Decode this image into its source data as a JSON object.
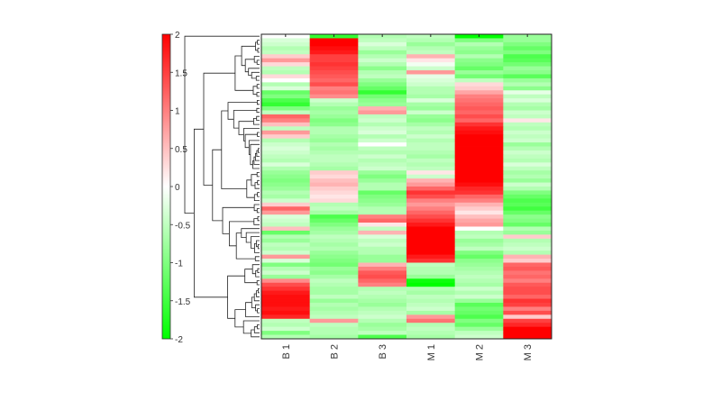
{
  "chart_data": {
    "type": "heatmap",
    "title": "",
    "columns": [
      "B 1",
      "B 2",
      "B 3",
      "M 1",
      "M 2",
      "M 3"
    ],
    "color_scale": {
      "min": -2,
      "max": 2,
      "ticks": [
        "2",
        "1.5",
        "1",
        "0.5",
        "0",
        "-0.5",
        "-1",
        "-1.5",
        "-2"
      ],
      "tick_values": [
        2,
        1.5,
        1,
        0.5,
        0,
        -0.5,
        -1,
        -1.5,
        -2
      ],
      "low_color": "#00ff00",
      "mid_color": "#ffffff",
      "high_color": "#ff0000"
    },
    "dendrogram": "rows",
    "legend_placement": "left",
    "rows": [
      [
        0.0,
        -1.6,
        -0.6,
        -0.5,
        -2.0,
        -0.8
      ],
      [
        -0.3,
        2.0,
        -0.5,
        -0.6,
        -1.0,
        -0.8
      ],
      [
        -0.4,
        2.0,
        -0.3,
        -0.8,
        -0.6,
        -1.0
      ],
      [
        -0.6,
        1.9,
        -0.5,
        -0.6,
        -0.8,
        -1.2
      ],
      [
        -0.5,
        1.8,
        -0.8,
        -0.5,
        -0.9,
        -1.0
      ],
      [
        0.4,
        1.5,
        -0.6,
        0.6,
        -0.6,
        -1.4
      ],
      [
        0.8,
        1.5,
        -0.4,
        0.2,
        -0.9,
        -1.3
      ],
      [
        0.3,
        1.6,
        -0.6,
        -0.1,
        -1.0,
        -1.1
      ],
      [
        -0.5,
        1.5,
        -0.9,
        -0.4,
        -1.2,
        -0.8
      ],
      [
        -0.6,
        1.4,
        -0.6,
        0.8,
        -0.8,
        -0.9
      ],
      [
        0.3,
        1.3,
        -0.5,
        -0.2,
        -1.1,
        -1.3
      ],
      [
        0.0,
        1.2,
        -0.8,
        -0.3,
        -0.5,
        -0.8
      ],
      [
        -0.6,
        1.4,
        -1.0,
        -0.4,
        0.3,
        -0.6
      ],
      [
        -0.3,
        1.0,
        -1.2,
        -0.6,
        0.4,
        -0.9
      ],
      [
        -1.2,
        1.1,
        -1.6,
        -0.6,
        0.7,
        -0.2
      ],
      [
        -1.0,
        0.9,
        -1.1,
        -0.7,
        1.0,
        -0.5
      ],
      [
        -1.4,
        -0.4,
        -0.9,
        -0.3,
        1.1,
        -0.3
      ],
      [
        -1.6,
        -0.6,
        -0.8,
        -0.7,
        1.2,
        -0.6
      ],
      [
        -1.0,
        -0.8,
        0.6,
        -0.8,
        1.3,
        -0.7
      ],
      [
        -0.5,
        -0.7,
        0.8,
        -0.4,
        1.2,
        -0.4
      ],
      [
        1.2,
        -0.8,
        -0.5,
        -0.8,
        1.4,
        -0.5
      ],
      [
        1.0,
        -1.0,
        -0.4,
        -0.9,
        1.2,
        0.2
      ],
      [
        0.5,
        -0.9,
        -0.6,
        -0.7,
        1.6,
        -0.5
      ],
      [
        -0.5,
        -0.6,
        -0.4,
        -0.5,
        1.8,
        -0.6
      ],
      [
        0.8,
        -0.6,
        -0.3,
        -0.6,
        1.9,
        -0.4
      ],
      [
        0.4,
        -0.7,
        -0.6,
        -0.4,
        2.0,
        -0.5
      ],
      [
        -0.6,
        -0.8,
        -0.4,
        -0.6,
        2.0,
        -0.4
      ],
      [
        -0.4,
        -0.6,
        0.0,
        -0.5,
        2.0,
        -0.8
      ],
      [
        -0.3,
        -0.7,
        -0.5,
        -0.5,
        2.0,
        -0.6
      ],
      [
        -0.4,
        -0.6,
        -0.6,
        -0.6,
        2.0,
        -0.4
      ],
      [
        -0.5,
        -0.5,
        -0.4,
        -0.7,
        2.0,
        -0.5
      ],
      [
        -0.6,
        -0.5,
        -0.6,
        -0.5,
        2.0,
        -0.6
      ],
      [
        -0.3,
        -0.6,
        -0.5,
        -0.6,
        2.0,
        -0.3
      ],
      [
        -0.6,
        -0.7,
        -0.4,
        -0.5,
        2.0,
        -0.5
      ],
      [
        -0.8,
        0.4,
        -0.8,
        0.2,
        2.0,
        -0.7
      ],
      [
        -0.9,
        0.3,
        -1.0,
        -0.4,
        2.0,
        -0.6
      ],
      [
        -1.0,
        0.5,
        -0.8,
        0.6,
        2.0,
        -0.8
      ],
      [
        -0.9,
        0.6,
        -0.6,
        0.8,
        1.9,
        -0.4
      ],
      [
        -0.8,
        0.4,
        -0.6,
        1.2,
        1.7,
        -0.6
      ],
      [
        -0.6,
        0.3,
        -1.2,
        1.6,
        1.6,
        -1.0
      ],
      [
        -0.7,
        0.2,
        -1.0,
        1.4,
        1.2,
        -1.2
      ],
      [
        -0.4,
        0.3,
        -0.9,
        1.0,
        1.0,
        -1.4
      ],
      [
        0.4,
        -0.6,
        -0.8,
        0.8,
        0.6,
        -1.3
      ],
      [
        1.2,
        -0.5,
        -0.6,
        1.0,
        0.4,
        -1.5
      ],
      [
        0.8,
        -0.7,
        -0.6,
        1.2,
        0.2,
        -1.2
      ],
      [
        -0.3,
        -1.4,
        1.0,
        1.4,
        0.5,
        -0.9
      ],
      [
        -0.4,
        -1.2,
        1.2,
        1.6,
        0.7,
        -1.0
      ],
      [
        -0.5,
        -1.0,
        0.2,
        1.8,
        0.8,
        -1.2
      ],
      [
        0.5,
        -0.8,
        -0.5,
        2.0,
        0.0,
        -0.6
      ],
      [
        -1.2,
        -0.7,
        0.6,
        2.0,
        -0.6,
        -0.8
      ],
      [
        -0.6,
        -0.5,
        -0.3,
        2.0,
        -0.5,
        0.4
      ],
      [
        -0.8,
        -0.6,
        -0.5,
        2.0,
        -0.8,
        -0.6
      ],
      [
        -0.5,
        -0.7,
        -0.4,
        2.0,
        -0.7,
        -0.5
      ],
      [
        -0.6,
        -0.6,
        -0.6,
        2.0,
        -0.5,
        -0.4
      ],
      [
        -0.4,
        -0.8,
        -0.6,
        2.0,
        -1.0,
        -0.6
      ],
      [
        0.8,
        -0.9,
        -0.8,
        1.8,
        -1.2,
        0.6
      ],
      [
        -0.3,
        -1.0,
        -0.8,
        1.6,
        -0.9,
        0.4
      ],
      [
        -1.0,
        -1.1,
        0.6,
        -0.5,
        -0.8,
        1.2
      ],
      [
        -0.6,
        -0.8,
        1.0,
        -0.6,
        -0.7,
        1.3
      ],
      [
        -0.4,
        -0.9,
        1.3,
        -0.6,
        -0.6,
        1.1
      ],
      [
        -0.8,
        -0.7,
        1.4,
        -0.8,
        -0.5,
        1.2
      ],
      [
        0.9,
        -0.5,
        1.2,
        -1.9,
        -0.6,
        1.0
      ],
      [
        1.4,
        -0.6,
        1.0,
        -2.0,
        -0.7,
        1.3
      ],
      [
        1.6,
        -0.7,
        -0.6,
        -0.6,
        -0.4,
        1.4
      ],
      [
        1.8,
        -0.7,
        -0.5,
        -0.7,
        -0.6,
        1.4
      ],
      [
        1.9,
        -0.5,
        -0.6,
        -0.5,
        -0.4,
        1.2
      ],
      [
        1.9,
        -0.8,
        -0.7,
        -0.6,
        -0.8,
        1.6
      ],
      [
        1.9,
        -0.6,
        -0.8,
        -0.5,
        -1.3,
        1.5
      ],
      [
        1.8,
        -0.7,
        -0.6,
        -0.4,
        -1.1,
        1.0
      ],
      [
        1.9,
        -0.6,
        -0.5,
        -0.7,
        -1.2,
        1.4
      ],
      [
        1.7,
        -0.5,
        -0.4,
        0.8,
        -1.4,
        0.4
      ],
      [
        -0.5,
        0.8,
        -0.6,
        1.1,
        -1.0,
        1.5
      ],
      [
        -0.6,
        -0.5,
        -0.8,
        -0.6,
        -1.2,
        1.7
      ],
      [
        -0.4,
        -0.6,
        -0.7,
        -0.5,
        -0.8,
        2.0
      ],
      [
        -1.0,
        -0.6,
        -0.5,
        -0.6,
        -0.5,
        2.0
      ],
      [
        -0.6,
        -0.7,
        -1.4,
        -0.7,
        -0.4,
        2.0
      ]
    ]
  }
}
